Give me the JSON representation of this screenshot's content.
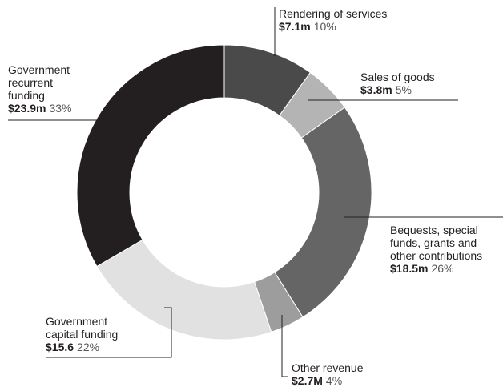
{
  "chart_data": {
    "type": "pie",
    "variant": "donut",
    "grid": false,
    "legend": "none",
    "slices": [
      {
        "label": "Rendering of services",
        "amount": "$7.1m",
        "percent": "10%",
        "value": 7.1,
        "color": "#4a4a4a"
      },
      {
        "label": "Sales of goods",
        "amount": "$3.8m",
        "percent": "5%",
        "value": 3.8,
        "color": "#b4b4b4"
      },
      {
        "label": "Bequests, special\nfunds, grants and\nother contributions",
        "amount": "$18.5m",
        "percent": "26%",
        "value": 18.5,
        "color": "#656565"
      },
      {
        "label": "Other revenue",
        "amount": "$2.7M",
        "percent": "4%",
        "value": 2.7,
        "color": "#9d9d9d"
      },
      {
        "label": "Government\ncapital funding",
        "amount": "$15.6",
        "percent": "22%",
        "value": 15.6,
        "color": "#e1e1e2"
      },
      {
        "label": "Government\nrecurrent\nfunding",
        "amount": "$23.9m",
        "percent": "33%",
        "value": 23.9,
        "color": "#231f20"
      }
    ]
  }
}
